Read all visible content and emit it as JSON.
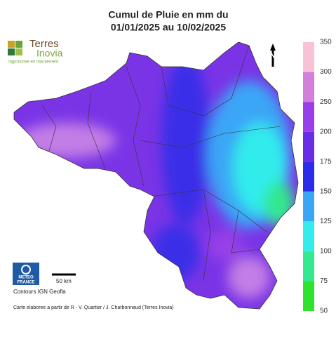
{
  "header": {
    "title_lines": [
      "Cumul de Pluie en mm du",
      "01/01/2025 au 10/02/2025"
    ]
  },
  "logo": {
    "name_lines": [
      "Terres",
      "Inovia"
    ],
    "tagline": "l'agronomie en mouvement"
  },
  "north": "N",
  "legend": {
    "ticks": [
      50,
      75,
      100,
      125,
      150,
      175,
      200,
      250,
      300,
      350
    ],
    "colors": [
      "#2ee22e",
      "#33e88e",
      "#33ecec",
      "#3aa6f6",
      "#2b2cea",
      "#6a2de6",
      "#9a3fe8",
      "#d47fdc",
      "#f9c2d4"
    ]
  },
  "scale_bar": "50 km",
  "meteo": [
    "METEO",
    "FRANCE"
  ],
  "contours": "Contours IGN Geofla",
  "credit": "Carte elaboree a partir de R - V. Quartier / J. Charbonnaud (Terres Inovia)"
}
